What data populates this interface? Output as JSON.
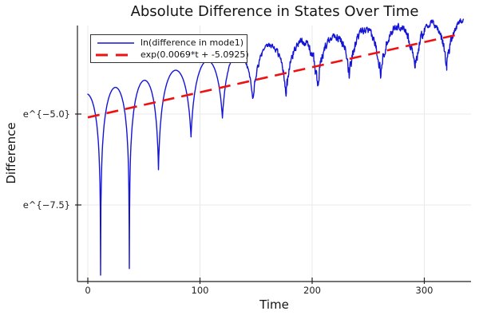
{
  "chart_data": {
    "type": "line",
    "title": "Absolute Difference in States Over Time",
    "xlabel": "Time",
    "ylabel": "Difference",
    "x_ticks": [
      0,
      100,
      200,
      300
    ],
    "y_ticks": [
      {
        "label": "e^{−5.0}",
        "value": -5.0
      },
      {
        "label": "e^{−7.5}",
        "value": -7.5
      }
    ],
    "xlim": [
      -9.25,
      341.65
    ],
    "ylim_ln": [
      -9.605,
      -2.566
    ],
    "y_scale": "natural-log",
    "grid": true,
    "legend_position": "top-left",
    "background": "#ffffff",
    "grid_color": "#e9e9e9",
    "axis_color": "#222222",
    "series": [
      {
        "name": "ln(difference in mode1)",
        "color": "#1414D7",
        "style": "solid",
        "width": 1.4,
        "description": "log-magnitude of mode-1 difference: rising oscillation arcs with sharp cusp dips at sign changes; dips shallow over time; high-frequency noise appears after t~120",
        "model": {
          "trend_slope": 0.0069,
          "trend_intercept": -5.0925,
          "peak_offset": 0.65,
          "peak_offset_decay_start": 140,
          "peak_offset_zero_at": 335,
          "t_start": 0,
          "t_end": 335,
          "zero_crossings": [
            -14.6,
            11.4,
            37,
            63,
            92,
            120,
            147,
            177,
            205,
            233,
            261,
            292,
            320,
            348
          ],
          "dip_depths_ln": [
            -9.5,
            -9.43,
            -9.25,
            -6.53,
            -5.63,
            -5.11,
            -4.67,
            -4.39,
            -4.25,
            -3.88,
            -3.79,
            -3.68,
            -3.66,
            -3.6
          ],
          "noise_start_t": 118,
          "noise_full_t": 178,
          "noise_amp": 0.075
        }
      },
      {
        "name": "exp(0.0069*t + -5.0925)",
        "color": "#EE1111",
        "style": "dashed",
        "width": 2.6,
        "model": {
          "slope": 0.0069,
          "intercept": -5.0925,
          "t_start": 0,
          "t_end": 333
        }
      }
    ]
  }
}
